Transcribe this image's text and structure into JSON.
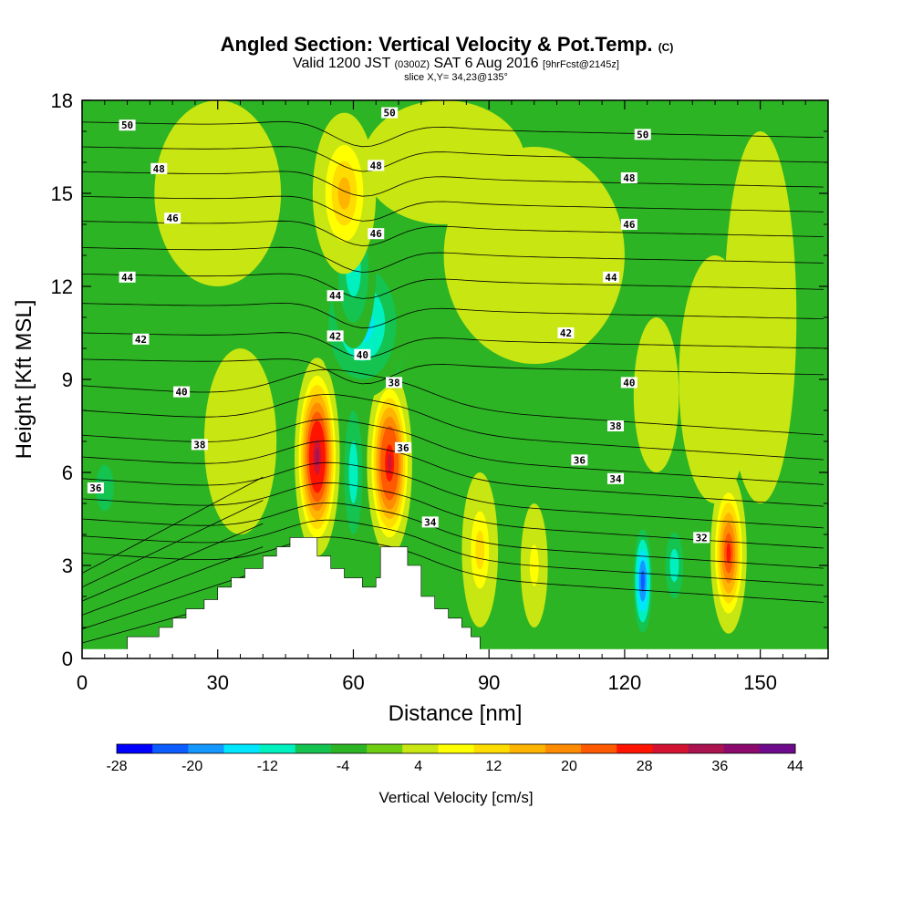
{
  "chart_data": {
    "type": "heatmap",
    "title": "Angled Section: Vertical Velocity & Pot.Temp.",
    "title_suffix": "(C)",
    "subtitle_parts": {
      "valid": "Valid 1200 JST",
      "utc": "(0300Z)",
      "date": "SAT 6 Aug 2016",
      "fcst": "[9hrFcst@2145z]"
    },
    "slice_label": "slice X,Y= 34,23@135°",
    "xlabel": "Distance [nm]",
    "ylabel": "Height [Kft MSL]",
    "xlim": [
      0,
      165
    ],
    "ylim": [
      0,
      18
    ],
    "x_ticks": [
      0,
      30,
      60,
      90,
      120,
      150
    ],
    "y_ticks": [
      0,
      3,
      6,
      9,
      12,
      15,
      18
    ],
    "colorbar": {
      "title": "Vertical Velocity [cm/s]",
      "levels": [
        -28,
        -24,
        -20,
        -16,
        -12,
        -8,
        -4,
        0,
        4,
        8,
        12,
        16,
        20,
        24,
        28,
        32,
        36,
        40,
        44
      ],
      "tick_labels": [
        -28,
        -20,
        -12,
        -4,
        4,
        12,
        20,
        28,
        36,
        44
      ],
      "colors": [
        "#0000ff",
        "#0c5cff",
        "#1497ff",
        "#00e6ff",
        "#00f0c0",
        "#14c350",
        "#2db424",
        "#6dcd10",
        "#c8e612",
        "#ffff00",
        "#ffdc00",
        "#ffb400",
        "#ff8c00",
        "#ff5a00",
        "#ff1400",
        "#d21432",
        "#aa1250",
        "#8c0a6e",
        "#6e0a8c"
      ]
    },
    "terrain": [
      [
        10,
        0.7
      ],
      [
        17,
        0.7
      ],
      [
        17,
        1.0
      ],
      [
        20,
        1.0
      ],
      [
        20,
        1.3
      ],
      [
        23,
        1.3
      ],
      [
        23,
        1.6
      ],
      [
        27,
        1.6
      ],
      [
        27,
        1.9
      ],
      [
        30,
        1.9
      ],
      [
        30,
        2.3
      ],
      [
        33,
        2.3
      ],
      [
        33,
        2.6
      ],
      [
        36,
        2.6
      ],
      [
        36,
        2.9
      ],
      [
        40,
        2.9
      ],
      [
        40,
        3.3
      ],
      [
        43,
        3.3
      ],
      [
        43,
        3.6
      ],
      [
        46,
        3.6
      ],
      [
        46,
        3.9
      ],
      [
        52,
        3.9
      ],
      [
        52,
        3.3
      ],
      [
        55,
        3.3
      ],
      [
        55,
        2.9
      ],
      [
        58,
        2.9
      ],
      [
        58,
        2.6
      ],
      [
        62,
        2.6
      ],
      [
        62,
        2.3
      ],
      [
        65,
        2.3
      ],
      [
        65,
        2.6
      ],
      [
        66,
        2.6
      ],
      [
        66,
        3.6
      ],
      [
        72,
        3.6
      ],
      [
        72,
        3.0
      ],
      [
        75,
        3.0
      ],
      [
        75,
        2.0
      ],
      [
        78,
        2.0
      ],
      [
        78,
        1.6
      ],
      [
        81,
        1.6
      ],
      [
        81,
        1.3
      ],
      [
        84,
        1.3
      ],
      [
        84,
        1.0
      ],
      [
        86,
        1.0
      ],
      [
        86,
        0.7
      ],
      [
        88,
        0.7
      ]
    ],
    "velocity_cells": [
      {
        "x": 52,
        "z": 6.5,
        "rx": 5,
        "rz": 3.2,
        "v": 42
      },
      {
        "x": 68,
        "z": 6.3,
        "rx": 5,
        "rz": 3.0,
        "v": 38
      },
      {
        "x": 68,
        "z": 10.4,
        "rx": 4,
        "rz": 1.6,
        "v": -28
      },
      {
        "x": 62,
        "z": 10.8,
        "rx": 10,
        "rz": 2.4,
        "v": -16
      },
      {
        "x": 60,
        "z": 12.5,
        "rx": 5,
        "rz": 2.5,
        "v": -12
      },
      {
        "x": 60,
        "z": 6.0,
        "rx": 3,
        "rz": 3.0,
        "v": -12
      },
      {
        "x": 58,
        "z": 15.0,
        "rx": 7,
        "rz": 2.6,
        "v": 20
      },
      {
        "x": 88,
        "z": 3.5,
        "rx": 4,
        "rz": 2.5,
        "v": 16
      },
      {
        "x": 100,
        "z": 3.0,
        "rx": 3,
        "rz": 2.0,
        "v": 12
      },
      {
        "x": 124,
        "z": 2.5,
        "rx": 2.5,
        "rz": 2.0,
        "v": -24
      },
      {
        "x": 131,
        "z": 3.0,
        "rx": 3,
        "rz": 1.6,
        "v": -12
      },
      {
        "x": 143,
        "z": 3.4,
        "rx": 4,
        "rz": 2.6,
        "v": 32
      },
      {
        "x": 127,
        "z": 8.5,
        "rx": 5,
        "rz": 2.5,
        "v": 8
      },
      {
        "x": 150,
        "z": 11.0,
        "rx": 8,
        "rz": 6.0,
        "v": 4
      },
      {
        "x": 5,
        "z": 5.5,
        "rx": 4,
        "rz": 1.5,
        "v": -8
      }
    ],
    "theta_contours": [
      {
        "value": 50,
        "label_points": [
          [
            10,
            17.2
          ],
          [
            68,
            17.6
          ],
          [
            124,
            16.9
          ]
        ]
      },
      {
        "value": 48,
        "label_points": [
          [
            17,
            15.8
          ],
          [
            65,
            15.9
          ],
          [
            121,
            15.5
          ]
        ]
      },
      {
        "value": 46,
        "label_points": [
          [
            20,
            14.2
          ],
          [
            65,
            13.7
          ],
          [
            121,
            14.0
          ]
        ]
      },
      {
        "value": 44,
        "label_points": [
          [
            10,
            12.3
          ],
          [
            56,
            11.7
          ],
          [
            117,
            12.3
          ]
        ]
      },
      {
        "value": 42,
        "label_points": [
          [
            13,
            10.3
          ],
          [
            56,
            10.4
          ],
          [
            107,
            10.5
          ]
        ]
      },
      {
        "value": 40,
        "label_points": [
          [
            22,
            8.6
          ],
          [
            62,
            9.8
          ],
          [
            121,
            8.9
          ]
        ]
      },
      {
        "value": 38,
        "label_points": [
          [
            26,
            6.9
          ],
          [
            69,
            8.9
          ],
          [
            118,
            7.5
          ]
        ]
      },
      {
        "value": 36,
        "label_points": [
          [
            3,
            5.5
          ],
          [
            71,
            6.8
          ],
          [
            110,
            6.4
          ]
        ]
      },
      {
        "value": 34,
        "label_points": [
          [
            77,
            4.4
          ],
          [
            118,
            5.8
          ]
        ]
      },
      {
        "value": 32,
        "label_points": [
          [
            137,
            3.9
          ]
        ]
      }
    ]
  }
}
